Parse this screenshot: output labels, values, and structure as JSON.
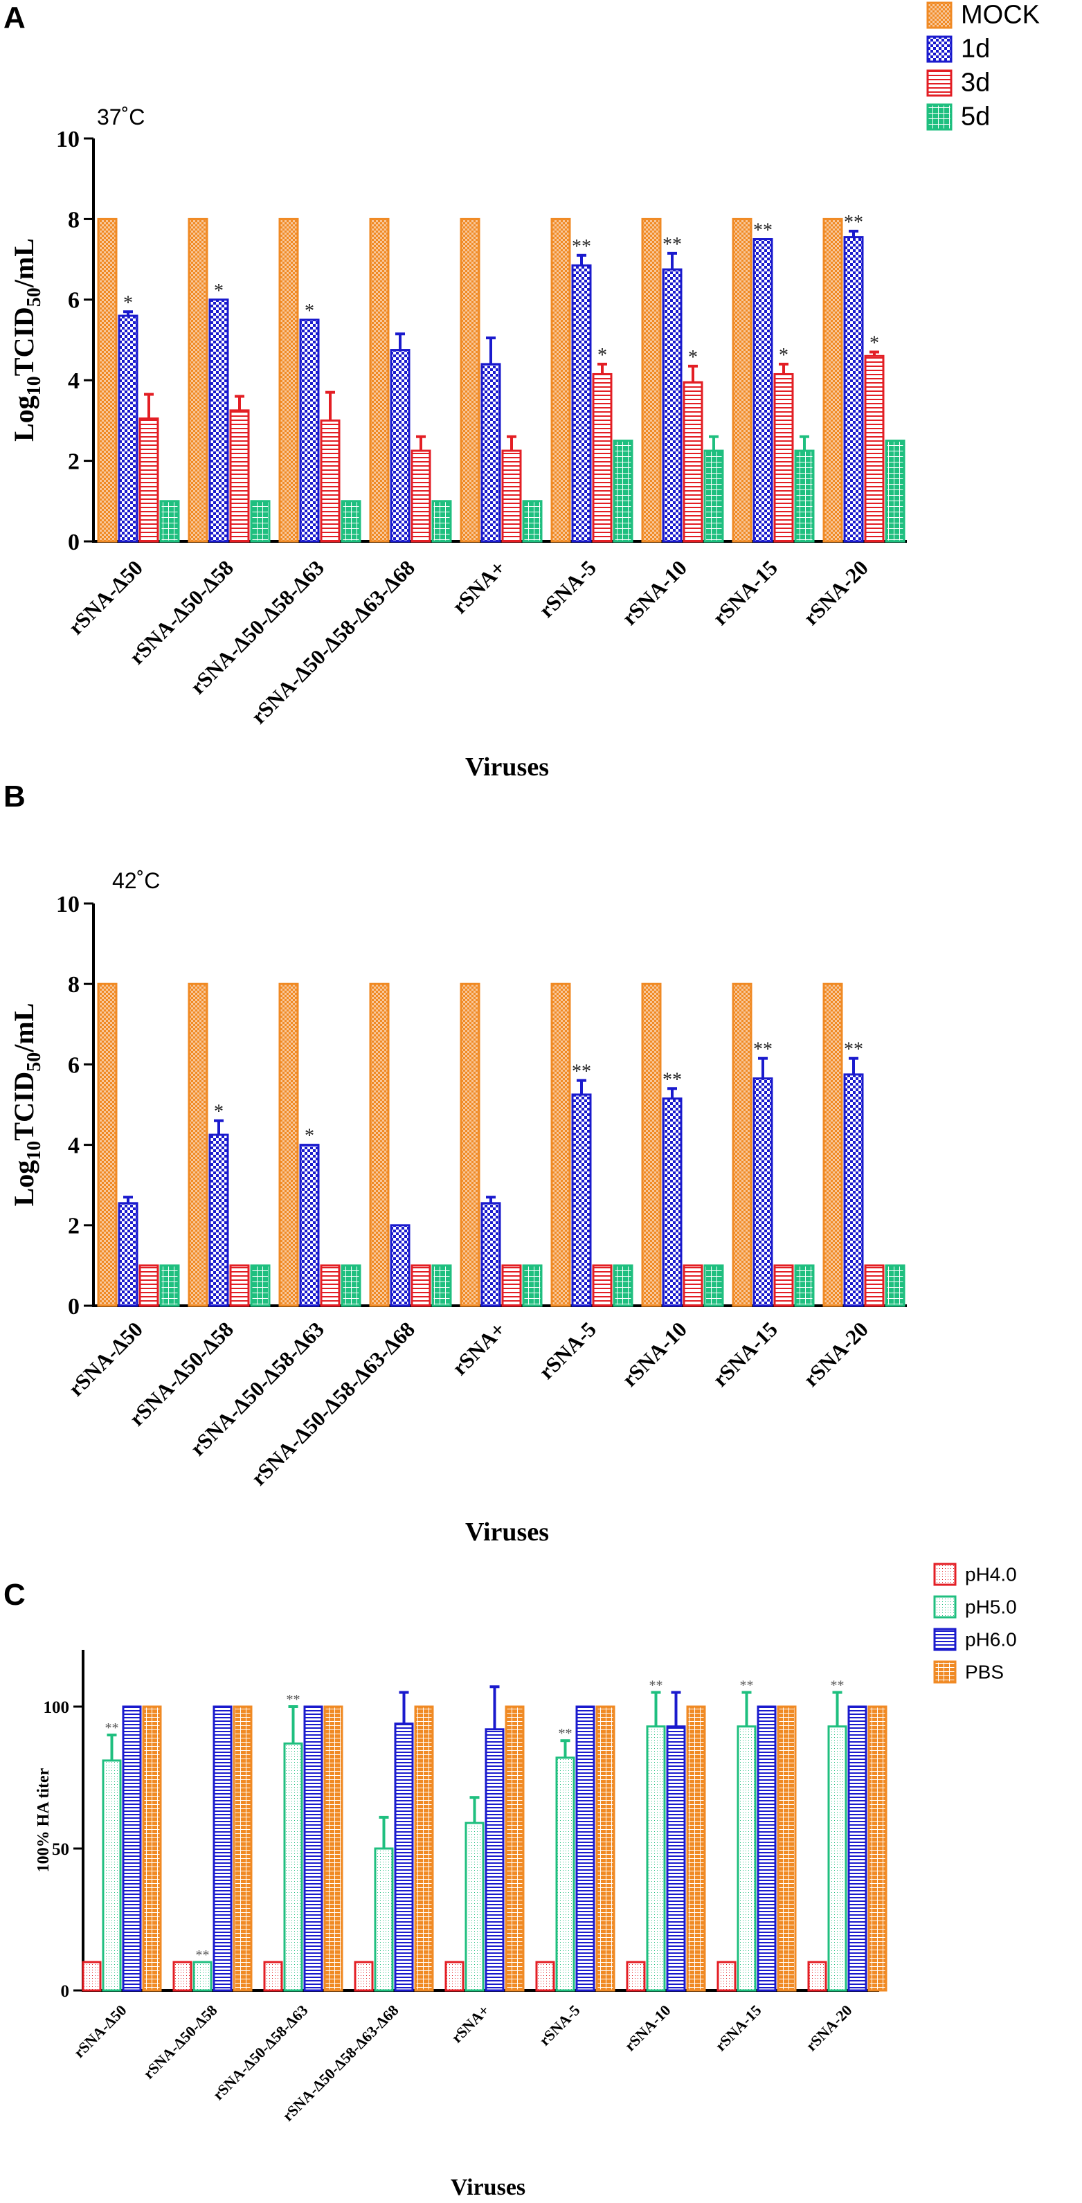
{
  "colors": {
    "MOCK": "#F08A24",
    "1d": "#1A1ACD",
    "3d": "#E31E24",
    "5d": "#1FBF7F",
    "pH4.0": "#E31E24",
    "pH5.0": "#1FBF7F",
    "pH6.0": "#1A1ACD",
    "PBS": "#F08A24",
    "axis": "#000000"
  },
  "chart_data": [
    {
      "panel": "A",
      "type": "bar",
      "annotation": "37˚C",
      "xlabel": "Viruses",
      "ylabel": "Log10TCID50/mL",
      "ylim": [
        0,
        10
      ],
      "yticks": [
        "0",
        "2",
        "4",
        "6",
        "8",
        "10"
      ],
      "categories": [
        "rSNA-Δ50",
        "rSNA-Δ50-Δ58",
        "rSNA-Δ50-Δ58-Δ63",
        "rSNA-Δ50-Δ58-Δ63-Δ68",
        "rSNA+",
        "rSNA-5",
        "rSNA-10",
        "rSNA-15",
        "rSNA-20"
      ],
      "legend": [
        "MOCK",
        "1d",
        "3d",
        "5d"
      ],
      "series": [
        {
          "name": "MOCK",
          "values": [
            8,
            8,
            8,
            8,
            8,
            8,
            8,
            8,
            8
          ],
          "errors": [
            0,
            0,
            0,
            0,
            0,
            0,
            0,
            0,
            0
          ]
        },
        {
          "name": "1d",
          "values": [
            5.6,
            6.0,
            5.5,
            4.75,
            4.4,
            6.85,
            6.75,
            7.5,
            7.55
          ],
          "errors": [
            0.1,
            0,
            0,
            0.4,
            0.65,
            0.25,
            0.4,
            0,
            0.15
          ],
          "sig": [
            "*",
            "*",
            "*",
            "",
            "",
            "**",
            "**",
            "**",
            "**"
          ]
        },
        {
          "name": "3d",
          "values": [
            3.05,
            3.25,
            3.0,
            2.25,
            2.25,
            4.15,
            3.95,
            4.15,
            4.6
          ],
          "errors": [
            0.6,
            0.35,
            0.7,
            0.35,
            0.35,
            0.25,
            0.4,
            0.25,
            0.1
          ],
          "sig": [
            "",
            "",
            "",
            "",
            "",
            "*",
            "*",
            "*",
            "*"
          ]
        },
        {
          "name": "5d",
          "values": [
            1.0,
            1.0,
            1.0,
            1.0,
            1.0,
            2.5,
            2.25,
            2.25,
            2.5
          ],
          "errors": [
            0,
            0,
            0,
            0,
            0,
            0,
            0.35,
            0.35,
            0
          ]
        }
      ]
    },
    {
      "panel": "B",
      "type": "bar",
      "annotation": "42˚C",
      "xlabel": "Viruses",
      "ylabel": "Log10TCID50/mL",
      "ylim": [
        0,
        10
      ],
      "yticks": [
        "0",
        "2",
        "4",
        "6",
        "8",
        "10"
      ],
      "categories": [
        "rSNA-Δ50",
        "rSNA-Δ50-Δ58",
        "rSNA-Δ50-Δ58-Δ63",
        "rSNA-Δ50-Δ58-Δ63-Δ68",
        "rSNA+",
        "rSNA-5",
        "rSNA-10",
        "rSNA-15",
        "rSNA-20"
      ],
      "legend": [
        "MOCK",
        "1d",
        "3d",
        "5d"
      ],
      "series": [
        {
          "name": "MOCK",
          "values": [
            8,
            8,
            8,
            8,
            8,
            8,
            8,
            8,
            8
          ],
          "errors": [
            0,
            0,
            0,
            0,
            0,
            0,
            0,
            0,
            0
          ]
        },
        {
          "name": "1d",
          "values": [
            2.55,
            4.25,
            4.0,
            2.0,
            2.55,
            5.25,
            5.15,
            5.65,
            5.75
          ],
          "errors": [
            0.15,
            0.35,
            0,
            0,
            0.15,
            0.35,
            0.25,
            0.5,
            0.4
          ],
          "sig": [
            "",
            "*",
            "*",
            "",
            "",
            "**",
            "**",
            "**",
            "**"
          ]
        },
        {
          "name": "3d",
          "values": [
            1,
            1,
            1,
            1,
            1,
            1,
            1,
            1,
            1
          ],
          "errors": [
            0,
            0,
            0,
            0,
            0,
            0,
            0,
            0,
            0
          ]
        },
        {
          "name": "5d",
          "values": [
            1,
            1,
            1,
            1,
            1,
            1,
            1,
            1,
            1
          ],
          "errors": [
            0,
            0,
            0,
            0,
            0,
            0,
            0,
            0,
            0
          ]
        }
      ]
    },
    {
      "panel": "C",
      "type": "bar",
      "xlabel": "Viruses",
      "ylabel": "100% HA titer",
      "ylim": [
        0,
        120
      ],
      "yticks": [
        "0",
        "50",
        "100"
      ],
      "categories": [
        "rSNA-Δ50",
        "rSNA-Δ50-Δ58",
        "rSNA-Δ50-Δ58-Δ63",
        "rSNA-Δ50-Δ58-Δ63-Δ68",
        "rSNA+",
        "rSNA-5",
        "rSNA-10",
        "rSNA-15",
        "rSNA-20"
      ],
      "legend": [
        "pH4.0",
        "pH5.0",
        "pH6.0",
        "PBS"
      ],
      "series": [
        {
          "name": "pH4.0",
          "values": [
            10,
            10,
            10,
            10,
            10,
            10,
            10,
            10,
            10
          ],
          "errors": [
            0,
            0,
            0,
            0,
            0,
            0,
            0,
            0,
            0
          ]
        },
        {
          "name": "pH5.0",
          "values": [
            81,
            10,
            87,
            50,
            59,
            82,
            93,
            93,
            93
          ],
          "errors": [
            9,
            0,
            13,
            11,
            9,
            6,
            12,
            12,
            12
          ],
          "sig": [
            "**",
            "**",
            "**",
            "",
            "",
            "**",
            "**",
            "**",
            "**"
          ]
        },
        {
          "name": "pH6.0",
          "values": [
            100,
            100,
            100,
            94,
            92,
            100,
            93,
            100,
            100
          ],
          "errors": [
            0,
            0,
            0,
            11,
            15,
            0,
            12,
            0,
            0
          ]
        },
        {
          "name": "PBS",
          "values": [
            100,
            100,
            100,
            100,
            100,
            100,
            100,
            100,
            100
          ],
          "errors": [
            0,
            0,
            0,
            0,
            0,
            0,
            0,
            0,
            0
          ]
        }
      ]
    }
  ]
}
